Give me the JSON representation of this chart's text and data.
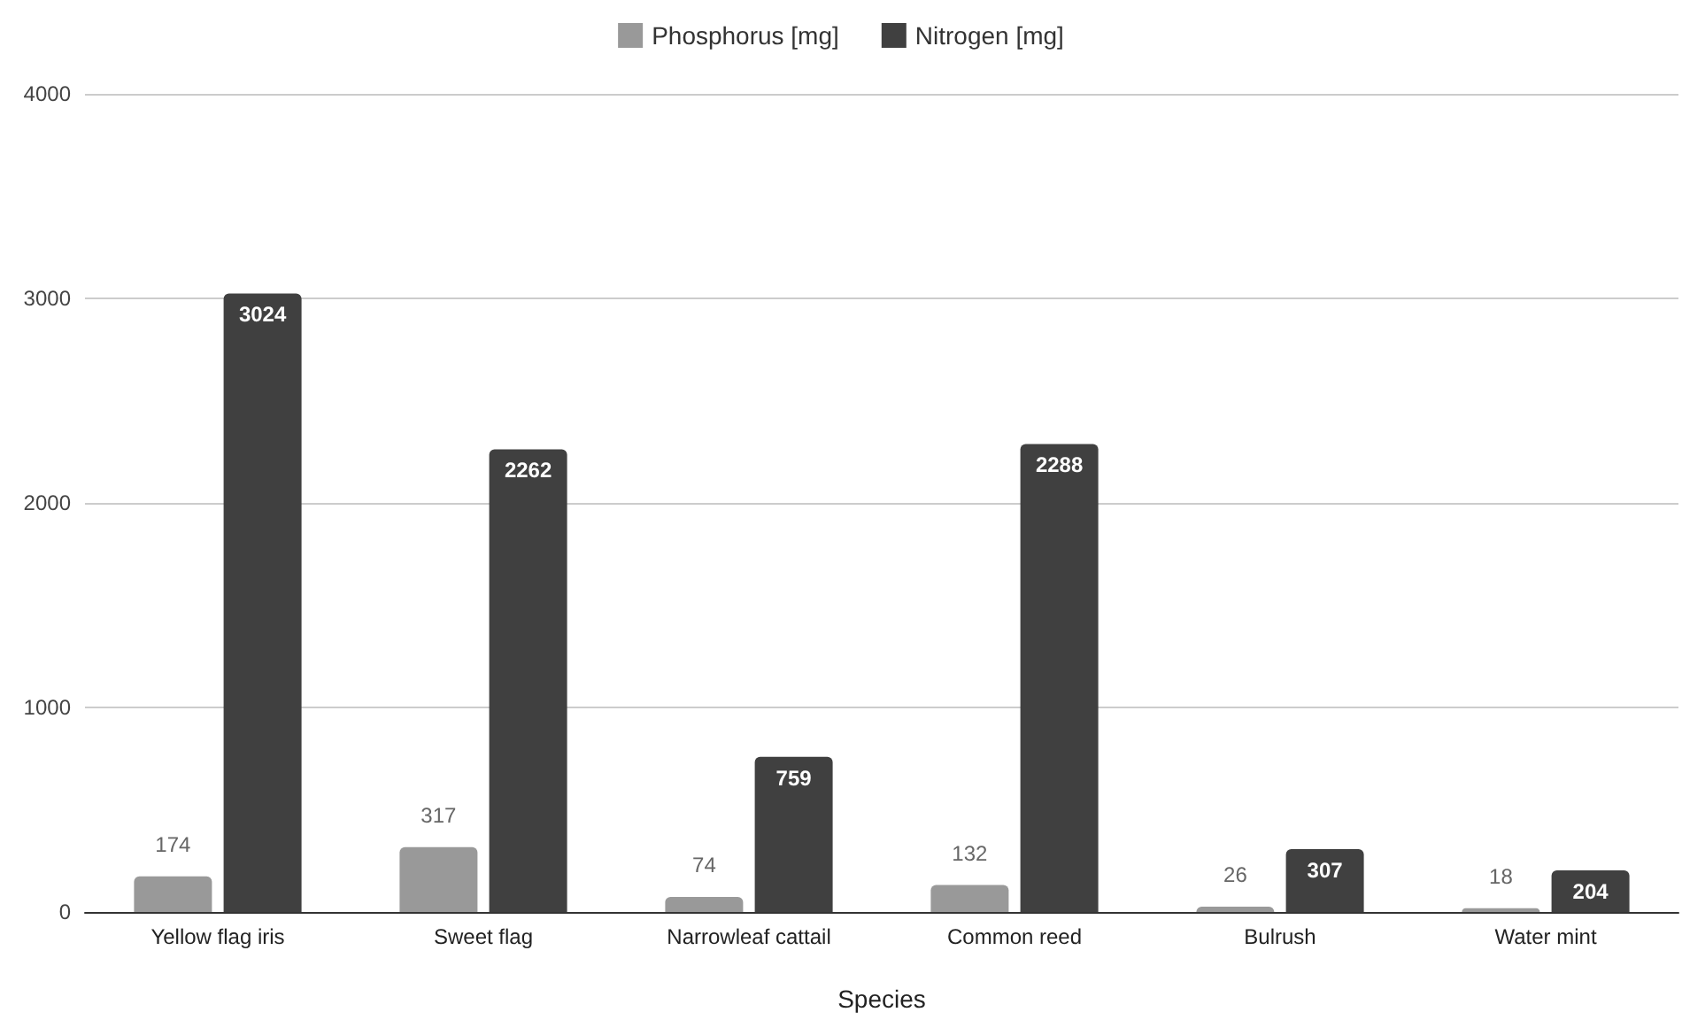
{
  "chart_data": {
    "type": "bar",
    "xlabel": "Species",
    "categories": [
      "Yellow flag iris",
      "Sweet flag",
      "Narrowleaf cattail",
      "Common reed",
      "Bulrush",
      "Water mint"
    ],
    "series": [
      {
        "name": "Phosphorus [mg]",
        "color": "#999999",
        "values": [
          174,
          317,
          74,
          132,
          26,
          18
        ]
      },
      {
        "name": "Nitrogen [mg]",
        "color": "#404040",
        "values": [
          3024,
          2262,
          759,
          2288,
          307,
          204
        ]
      }
    ],
    "ylim": [
      0,
      4000
    ],
    "yticks": [
      0,
      1000,
      2000,
      3000,
      4000
    ],
    "grid": "y",
    "legend": "top",
    "data_labels": true
  }
}
